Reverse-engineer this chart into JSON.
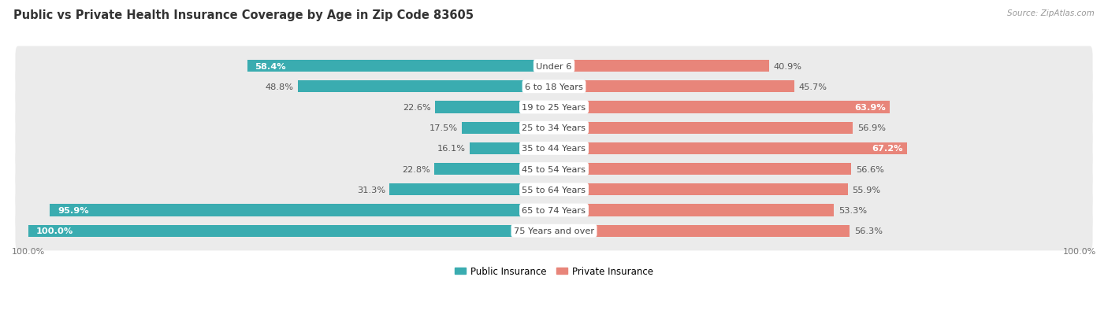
{
  "title": "Public vs Private Health Insurance Coverage by Age in Zip Code 83605",
  "source": "Source: ZipAtlas.com",
  "categories": [
    "Under 6",
    "6 to 18 Years",
    "19 to 25 Years",
    "25 to 34 Years",
    "35 to 44 Years",
    "45 to 54 Years",
    "55 to 64 Years",
    "65 to 74 Years",
    "75 Years and over"
  ],
  "public_values": [
    58.4,
    48.8,
    22.6,
    17.5,
    16.1,
    22.8,
    31.3,
    95.9,
    100.0
  ],
  "private_values": [
    40.9,
    45.7,
    63.9,
    56.9,
    67.2,
    56.6,
    55.9,
    53.3,
    56.3
  ],
  "public_color": "#3AACB0",
  "private_color": "#E8857A",
  "private_color_dark": "#D4675A",
  "bar_height": 0.58,
  "row_bg_color": "#EBEBEB",
  "row_bg_color_alt": "#F5F5F5",
  "bg_color": "#FFFFFF",
  "title_fontsize": 10.5,
  "source_fontsize": 7.5,
  "label_fontsize": 8.2,
  "value_fontsize": 8.2,
  "center_label_color": "#444444",
  "dark_value_color": "#555555",
  "white_value_color": "#FFFFFF",
  "xlim": 100,
  "legend_fontsize": 8.5
}
